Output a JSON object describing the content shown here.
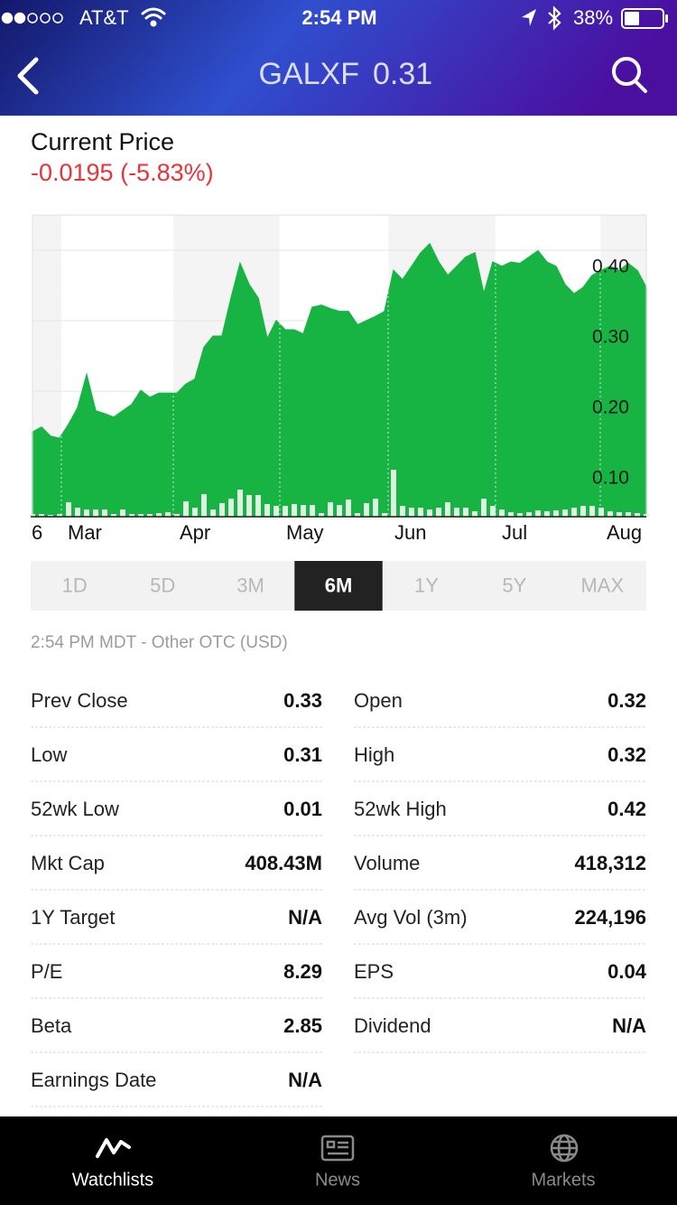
{
  "status_bar": {
    "carrier": "AT&T",
    "time": "2:54 PM",
    "battery": "38%"
  },
  "header": {
    "ticker": "GALXF",
    "price": "0.31"
  },
  "quote": {
    "label": "Current Price",
    "change": "-0.0195 (-5.83%)"
  },
  "chart_data": {
    "type": "area",
    "color": "#17b443",
    "values": [
      0.142,
      0.149,
      0.136,
      0.133,
      0.153,
      0.176,
      0.223,
      0.172,
      0.168,
      0.163,
      0.172,
      0.181,
      0.201,
      0.191,
      0.197,
      0.197,
      0.197,
      0.21,
      0.217,
      0.262,
      0.278,
      0.278,
      0.332,
      0.381,
      0.351,
      0.332,
      0.274,
      0.3,
      0.287,
      0.287,
      0.281,
      0.319,
      0.322,
      0.317,
      0.313,
      0.313,
      0.294,
      0.3,
      0.306,
      0.313,
      0.371,
      0.358,
      0.377,
      0.396,
      0.409,
      0.383,
      0.364,
      0.377,
      0.39,
      0.396,
      0.338,
      0.383,
      0.377,
      0.383,
      0.381,
      0.39,
      0.399,
      0.383,
      0.377,
      0.351,
      0.338,
      0.347,
      0.364,
      0.371,
      0.377,
      0.371,
      0.381,
      0.371,
      0.347
    ],
    "volume": {
      "axis": "y2",
      "color": "#dcf4e1",
      "values": [
        75000,
        75000,
        50000,
        75000,
        400000,
        250000,
        200000,
        200000,
        200000,
        75000,
        200000,
        75000,
        75000,
        75000,
        100000,
        125000,
        75000,
        425000,
        250000,
        625000,
        200000,
        375000,
        500000,
        750000,
        600000,
        600000,
        350000,
        300000,
        300000,
        350000,
        325000,
        325000,
        100000,
        400000,
        325000,
        475000,
        100000,
        375000,
        500000,
        100000,
        1300000,
        300000,
        250000,
        250000,
        200000,
        250000,
        400000,
        250000,
        250000,
        150000,
        500000,
        300000,
        200000,
        125000,
        100000,
        125000,
        175000,
        150000,
        175000,
        200000,
        250000,
        300000,
        300000,
        250000,
        150000,
        125000,
        125000,
        100000,
        75000
      ]
    },
    "ylim": [
      0.022,
      0.45
    ],
    "yticks": [
      {
        "value": 0.1,
        "label": "0.10"
      },
      {
        "value": 0.2,
        "label": "0.20"
      },
      {
        "value": 0.3,
        "label": "0.30"
      },
      {
        "value": 0.4,
        "label": "0.40"
      }
    ],
    "y2lim": [
      0,
      8350000
    ],
    "xlim": [
      0,
      68
    ],
    "xticks": [
      {
        "value": -0.8,
        "label": "6"
      },
      {
        "value": 3.2,
        "label": "Mar"
      },
      {
        "value": 15.6,
        "label": "Apr"
      },
      {
        "value": 27.4,
        "label": "May"
      },
      {
        "value": 39.4,
        "label": "Jun"
      },
      {
        "value": 51.3,
        "label": "Jul"
      },
      {
        "value": 62.9,
        "label": "Aug"
      }
    ],
    "grid": true
  },
  "ranges": {
    "items": [
      "1D",
      "5D",
      "3M",
      "6M",
      "1Y",
      "5Y",
      "MAX"
    ],
    "active": "6M"
  },
  "note": "2:54 PM MDT - Other OTC (USD)",
  "stats": {
    "left": [
      [
        "Prev Close",
        "0.33"
      ],
      [
        "Low",
        "0.31"
      ],
      [
        "52wk Low",
        "0.01"
      ],
      [
        "Mkt Cap",
        "408.43M"
      ],
      [
        "1Y Target",
        "N/A"
      ],
      [
        "P/E",
        "8.29"
      ],
      [
        "Beta",
        "2.85"
      ],
      [
        "Earnings Date",
        "N/A"
      ]
    ],
    "right": [
      [
        "Open",
        "0.32"
      ],
      [
        "High",
        "0.32"
      ],
      [
        "52wk High",
        "0.42"
      ],
      [
        "Volume",
        "418,312"
      ],
      [
        "Avg Vol (3m)",
        "224,196"
      ],
      [
        "EPS",
        "0.04"
      ],
      [
        "Dividend",
        "N/A"
      ]
    ]
  },
  "tab_bar": {
    "items": [
      "Watchlists",
      "News",
      "Markets"
    ]
  }
}
